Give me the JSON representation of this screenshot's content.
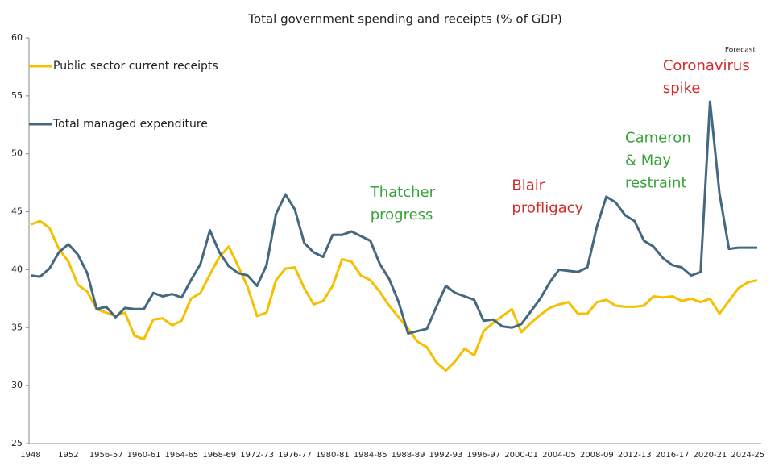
{
  "chart_data": {
    "type": "line",
    "title": "Total government spending and receipts (% of GDP)",
    "categories": [
      "1948",
      null,
      null,
      null,
      "1952",
      null,
      null,
      null,
      "1956-57",
      null,
      null,
      null,
      "1960-61",
      null,
      null,
      null,
      "1964-65",
      null,
      null,
      null,
      "1968-69",
      null,
      null,
      null,
      "1972-73",
      null,
      null,
      null,
      "1976-77",
      null,
      null,
      null,
      "1980-81",
      null,
      null,
      null,
      "1984-85",
      null,
      null,
      null,
      "1988-89",
      null,
      null,
      null,
      "1992-93",
      null,
      null,
      null,
      "1996-97",
      null,
      null,
      null,
      "2000-01",
      null,
      null,
      null,
      "2004-05",
      null,
      null,
      null,
      "2008-09",
      null,
      null,
      null,
      "2012-13",
      null,
      null,
      null,
      "2016-17",
      null,
      null,
      null,
      "2020-21",
      null,
      null,
      null,
      "2024-25",
      null
    ],
    "series": [
      {
        "name": "Public sector current receipts",
        "color": "#f5c000",
        "values": [
          43.9,
          44.2,
          43.6,
          41.8,
          40.7,
          38.7,
          38.1,
          36.6,
          36.3,
          36.0,
          36.3,
          34.3,
          34.0,
          35.7,
          35.8,
          35.2,
          35.6,
          37.5,
          38.0,
          39.6,
          41.1,
          42.0,
          40.3,
          38.5,
          36.0,
          36.3,
          39.1,
          40.1,
          40.2,
          38.4,
          37.0,
          37.3,
          38.6,
          40.9,
          40.7,
          39.5,
          39.1,
          38.1,
          36.9,
          35.9,
          34.9,
          33.8,
          33.3,
          32.0,
          31.3,
          32.1,
          33.2,
          32.6,
          34.7,
          35.4,
          36.0,
          36.6,
          34.6,
          35.4,
          36.1,
          36.7,
          37.0,
          37.2,
          36.2,
          36.2,
          37.2,
          37.4,
          36.9,
          36.8,
          36.8,
          36.9,
          37.7,
          37.6,
          37.7,
          37.3,
          37.5,
          37.2,
          37.5,
          36.2,
          37.3,
          38.4,
          38.9,
          39.1
        ]
      },
      {
        "name": "Total managed expenditure",
        "color": "#44687f",
        "values": [
          39.5,
          39.4,
          40.1,
          41.5,
          42.2,
          41.3,
          39.7,
          36.6,
          36.8,
          35.9,
          36.7,
          36.6,
          36.6,
          38.0,
          37.7,
          37.9,
          37.6,
          39.1,
          40.5,
          43.4,
          41.5,
          40.3,
          39.7,
          39.5,
          38.6,
          40.4,
          44.8,
          46.5,
          45.2,
          42.3,
          41.5,
          41.1,
          43.0,
          43.0,
          43.3,
          42.9,
          42.5,
          40.5,
          39.2,
          37.2,
          34.5,
          34.7,
          34.9,
          36.8,
          38.6,
          38.0,
          37.7,
          37.4,
          35.6,
          35.7,
          35.1,
          35.0,
          35.3,
          36.4,
          37.5,
          38.9,
          40.0,
          39.9,
          39.8,
          40.2,
          43.7,
          46.3,
          45.8,
          44.7,
          44.2,
          42.5,
          42.0,
          41.0,
          40.4,
          40.2,
          39.5,
          39.8,
          54.5,
          46.6,
          41.8,
          41.9,
          41.9,
          41.9
        ]
      }
    ],
    "ylim": [
      25,
      60
    ],
    "yticks": [
      25,
      30,
      35,
      40,
      45,
      50,
      55,
      60
    ],
    "grid": false,
    "forecast_label": "Forecast",
    "annotations": [
      {
        "lines": [
          "Thatcher",
          "progress"
        ],
        "color": "#3aa23a",
        "index": 36,
        "value": 46.3
      },
      {
        "lines": [
          "Blair",
          "profligacy"
        ],
        "color": "#d42a2a",
        "index": 51,
        "value": 46.9
      },
      {
        "lines": [
          "Cameron",
          "& May",
          "restraint"
        ],
        "color": "#3aa23a",
        "index": 63,
        "value": 51.0
      },
      {
        "lines": [
          "Coronavirus",
          "spike"
        ],
        "color": "#d42a2a",
        "index": 67,
        "value": 57.2
      }
    ]
  }
}
